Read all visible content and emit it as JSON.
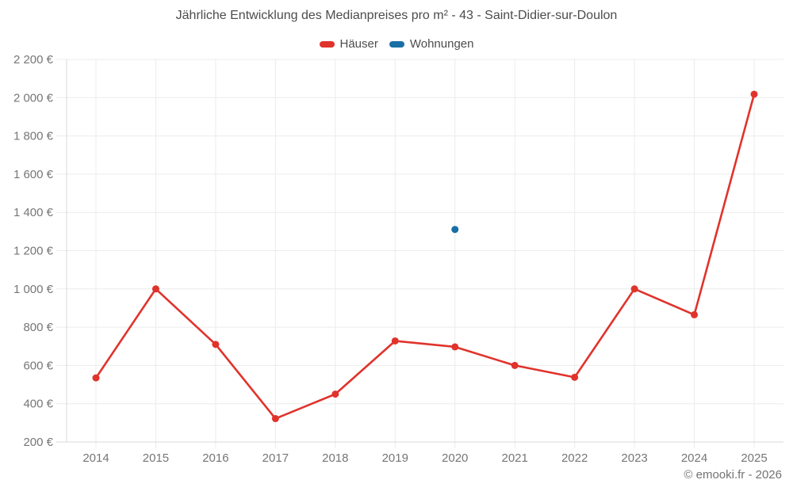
{
  "header": {
    "title": "Jährliche Entwicklung des Medianpreises pro m² - 43 - Saint-Didier-sur-Doulon",
    "legend": [
      {
        "label": "Häuser",
        "color": "#e0332c"
      },
      {
        "label": "Wohnungen",
        "color": "#186fa5"
      }
    ]
  },
  "footer": {
    "credit": "© emooki.fr - 2026"
  },
  "chart_data": {
    "type": "line",
    "title": "Jährliche Entwicklung des Medianpreises pro m² - 43 - Saint-Didier-sur-Doulon",
    "categories": [
      "2014",
      "2015",
      "2016",
      "2017",
      "2018",
      "2019",
      "2020",
      "2021",
      "2022",
      "2023",
      "2024",
      "2025"
    ],
    "series": [
      {
        "name": "Häuser",
        "color": "#e0332c",
        "values": [
          535,
          1000,
          710,
          322,
          450,
          728,
          697,
          600,
          538,
          1000,
          865,
          2018
        ]
      },
      {
        "name": "Wohnungen",
        "color": "#186fa5",
        "values": [
          null,
          null,
          null,
          null,
          null,
          null,
          1311,
          null,
          null,
          null,
          null,
          null
        ]
      }
    ],
    "xlabel": "",
    "ylabel": "",
    "ylim": [
      200,
      2200
    ],
    "y_tick_step": 200,
    "y_ticks": [
      {
        "value": 200,
        "label": "200 €"
      },
      {
        "value": 400,
        "label": "400 €"
      },
      {
        "value": 600,
        "label": "600 €"
      },
      {
        "value": 800,
        "label": "800 €"
      },
      {
        "value": 1000,
        "label": "1 000 €"
      },
      {
        "value": 1200,
        "label": "1 200 €"
      },
      {
        "value": 1400,
        "label": "1 400 €"
      },
      {
        "value": 1600,
        "label": "1 600 €"
      },
      {
        "value": 1800,
        "label": "1 800 €"
      },
      {
        "value": 2000,
        "label": "2 000 €"
      },
      {
        "value": 2200,
        "label": "2 200 €"
      }
    ],
    "grid": true,
    "legend_position": "top",
    "colors": {
      "grid_line": "#ececec",
      "axis_border": "#d9d9d9",
      "tick_text": "#767676",
      "title_text": "#4c4c4c"
    }
  }
}
